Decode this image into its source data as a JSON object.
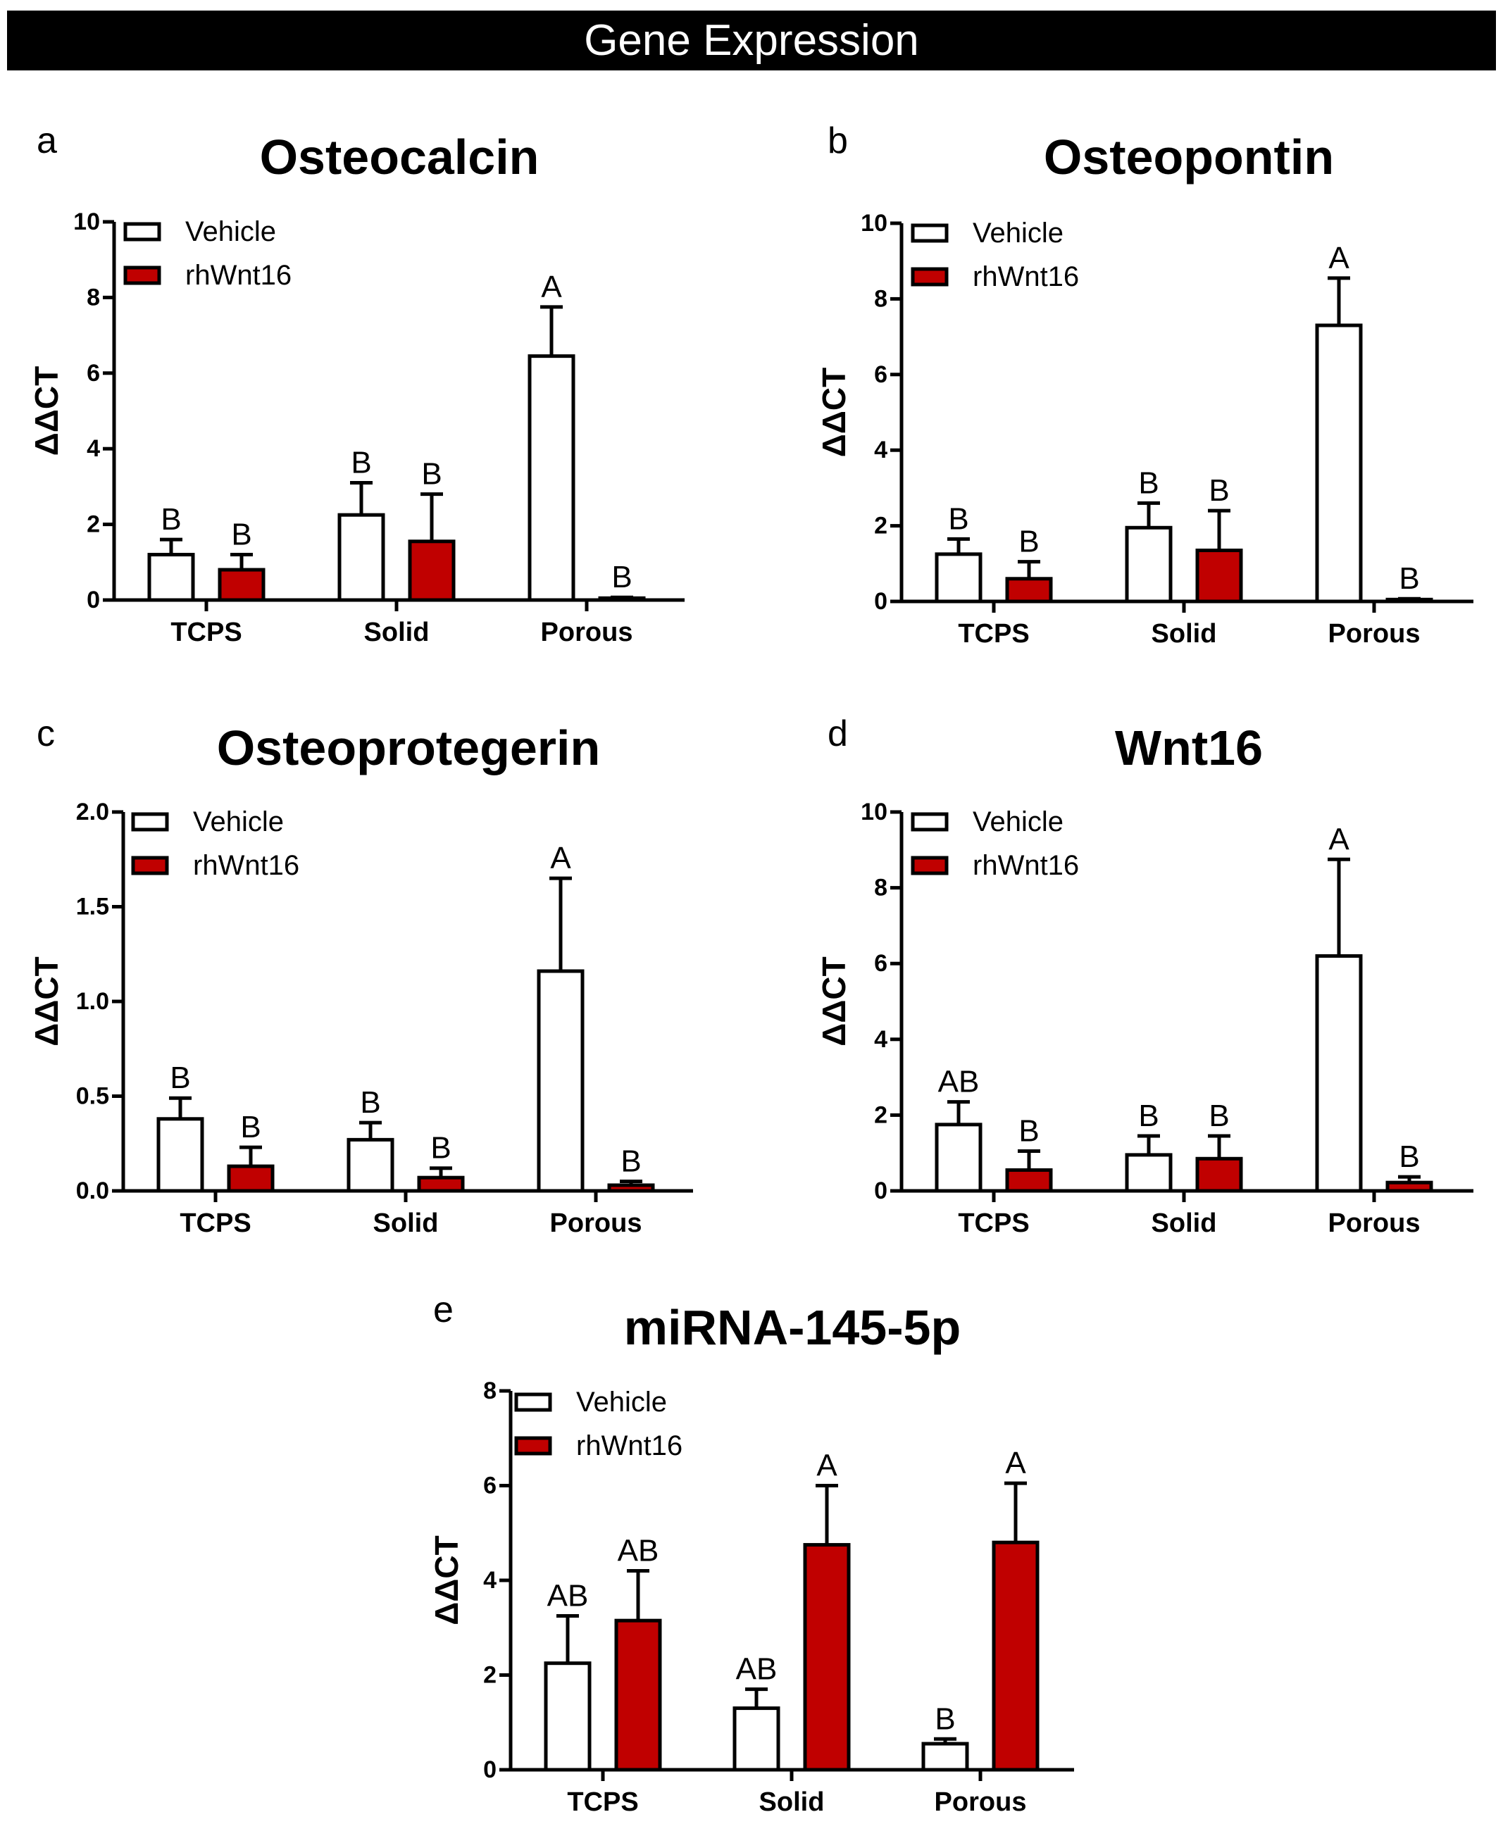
{
  "header": {
    "title": "Gene Expression"
  },
  "colors": {
    "vehicle_fill": "#ffffff",
    "rhwnt16_fill": "#c00000",
    "stroke": "#000000"
  },
  "chart_data": [
    {
      "type": "bar",
      "panel": "a",
      "title": "Osteocalcin",
      "ylabel": "ΔΔCT",
      "xlabel": "",
      "categories": [
        "TCPS",
        "Solid",
        "Porous"
      ],
      "ylim": [
        0,
        10
      ],
      "yticks": [
        "0",
        "2",
        "4",
        "6",
        "8",
        "10"
      ],
      "legend": [
        "Vehicle",
        "rhWnt16"
      ],
      "legend_position": "top-left",
      "series": [
        {
          "name": "Vehicle",
          "values": [
            1.2,
            2.25,
            6.45
          ],
          "errors": [
            0.4,
            0.85,
            1.3
          ],
          "labels": [
            "B",
            "B",
            "A"
          ]
        },
        {
          "name": "rhWnt16",
          "values": [
            0.8,
            1.55,
            0.05
          ],
          "errors": [
            0.4,
            1.25,
            0.02
          ],
          "labels": [
            "B",
            "B",
            "B"
          ]
        }
      ]
    },
    {
      "type": "bar",
      "panel": "b",
      "title": "Osteopontin",
      "ylabel": "ΔΔCT",
      "xlabel": "",
      "categories": [
        "TCPS",
        "Solid",
        "Porous"
      ],
      "ylim": [
        0,
        10
      ],
      "yticks": [
        "0",
        "2",
        "4",
        "6",
        "8",
        "10"
      ],
      "legend": [
        "Vehicle",
        "rhWnt16"
      ],
      "legend_position": "top-left",
      "series": [
        {
          "name": "Vehicle",
          "values": [
            1.25,
            1.95,
            7.3
          ],
          "errors": [
            0.4,
            0.65,
            1.25
          ],
          "labels": [
            "B",
            "B",
            "A"
          ]
        },
        {
          "name": "rhWnt16",
          "values": [
            0.6,
            1.35,
            0.05
          ],
          "errors": [
            0.45,
            1.05,
            0.02
          ],
          "labels": [
            "B",
            "B",
            "B"
          ]
        }
      ]
    },
    {
      "type": "bar",
      "panel": "c",
      "title": "Osteoprotegerin",
      "ylabel": "ΔΔCT",
      "xlabel": "",
      "categories": [
        "TCPS",
        "Solid",
        "Porous"
      ],
      "ylim": [
        0,
        2
      ],
      "yticks": [
        "0.0",
        "0.5",
        "1.0",
        "1.5",
        "2.0"
      ],
      "legend": [
        "Vehicle",
        "rhWnt16"
      ],
      "legend_position": "top-left",
      "series": [
        {
          "name": "Vehicle",
          "values": [
            0.38,
            0.27,
            1.16
          ],
          "errors": [
            0.11,
            0.09,
            0.49
          ],
          "labels": [
            "B",
            "B",
            "A"
          ]
        },
        {
          "name": "rhWnt16",
          "values": [
            0.13,
            0.07,
            0.03
          ],
          "errors": [
            0.1,
            0.05,
            0.02
          ],
          "labels": [
            "B",
            "B",
            "B"
          ]
        }
      ]
    },
    {
      "type": "bar",
      "panel": "d",
      "title": "Wnt16",
      "ylabel": "ΔΔCT",
      "xlabel": "",
      "categories": [
        "TCPS",
        "Solid",
        "Porous"
      ],
      "ylim": [
        0,
        10
      ],
      "yticks": [
        "0",
        "2",
        "4",
        "6",
        "8",
        "10"
      ],
      "legend": [
        "Vehicle",
        "rhWnt16"
      ],
      "legend_position": "top-left",
      "series": [
        {
          "name": "Vehicle",
          "values": [
            1.75,
            0.95,
            6.2
          ],
          "errors": [
            0.6,
            0.5,
            2.55
          ],
          "labels": [
            "AB",
            "B",
            "A"
          ]
        },
        {
          "name": "rhWnt16",
          "values": [
            0.55,
            0.85,
            0.22
          ],
          "errors": [
            0.5,
            0.6,
            0.15
          ],
          "labels": [
            "B",
            "B",
            "B"
          ]
        }
      ]
    },
    {
      "type": "bar",
      "panel": "e",
      "title": "miRNA-145-5p",
      "ylabel": "ΔΔCT",
      "xlabel": "",
      "categories": [
        "TCPS",
        "Solid",
        "Porous"
      ],
      "ylim": [
        0,
        8
      ],
      "yticks": [
        "0",
        "2",
        "4",
        "6",
        "8"
      ],
      "legend": [
        "Vehicle",
        "rhWnt16"
      ],
      "legend_position": "top-left",
      "series": [
        {
          "name": "Vehicle",
          "values": [
            2.25,
            1.3,
            0.55
          ],
          "errors": [
            1.0,
            0.4,
            0.1
          ],
          "labels": [
            "AB",
            "AB",
            "B"
          ]
        },
        {
          "name": "rhWnt16",
          "values": [
            3.15,
            4.75,
            4.8
          ],
          "errors": [
            1.05,
            1.25,
            1.25
          ],
          "labels": [
            "AB",
            "A",
            "A"
          ]
        }
      ]
    }
  ]
}
